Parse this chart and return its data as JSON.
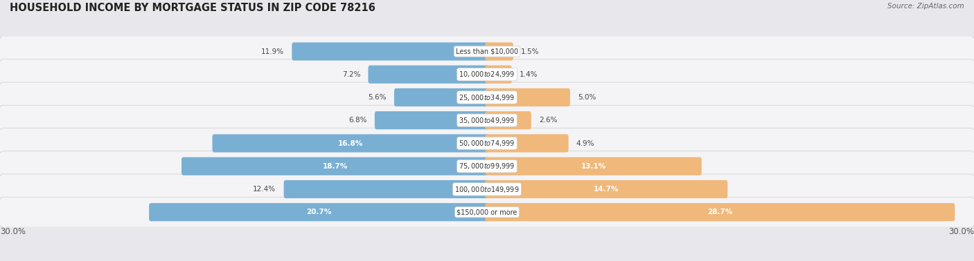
{
  "title": "HOUSEHOLD INCOME BY MORTGAGE STATUS IN ZIP CODE 78216",
  "source": "Source: ZipAtlas.com",
  "categories": [
    "Less than $10,000",
    "$10,000 to $24,999",
    "$25,000 to $34,999",
    "$35,000 to $49,999",
    "$50,000 to $74,999",
    "$75,000 to $99,999",
    "$100,000 to $149,999",
    "$150,000 or more"
  ],
  "without_mortgage": [
    11.9,
    7.2,
    5.6,
    6.8,
    16.8,
    18.7,
    12.4,
    20.7
  ],
  "with_mortgage": [
    1.5,
    1.4,
    5.0,
    2.6,
    4.9,
    13.1,
    14.7,
    28.7
  ],
  "color_without": "#7aafd4",
  "color_with": "#f0b87a",
  "axis_limit": 30.0,
  "background_color": "#e8e8ec",
  "row_bg_color": "#f4f4f6",
  "axis_label_left": "30.0%",
  "axis_label_right": "30.0%",
  "white_text_threshold_without": 15.0,
  "white_text_threshold_with": 10.0
}
